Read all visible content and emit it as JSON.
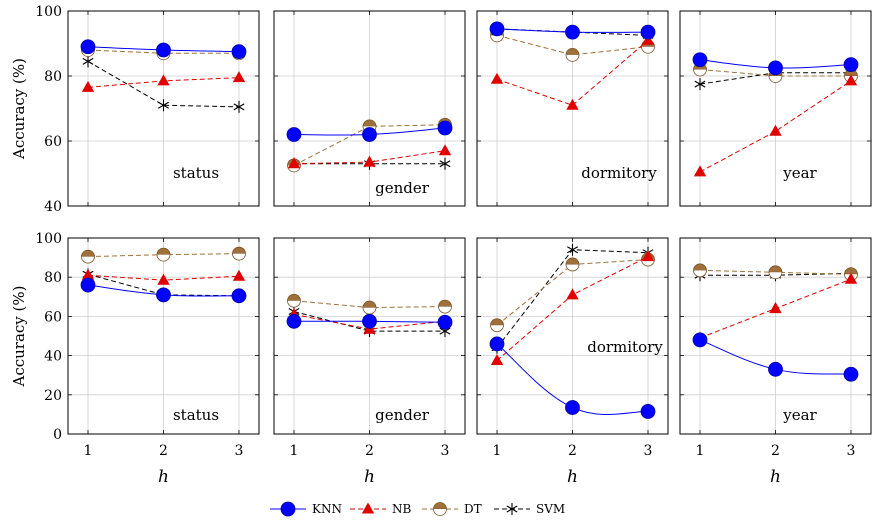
{
  "chart_data": {
    "type": "line",
    "xlabel": "h",
    "ylabel": "Accuracy (%)",
    "x": [
      1,
      2,
      3
    ],
    "xticks": [
      "1",
      "2",
      "3"
    ],
    "grid": true,
    "legend_position": "bottom-center",
    "legend": [
      {
        "name": "KNN",
        "color": "#0000ff",
        "marker": "circle",
        "dash": "solid"
      },
      {
        "name": "NB",
        "color": "#e00000",
        "marker": "triangle",
        "dash": "dashed"
      },
      {
        "name": "DT",
        "color": "#a0703a",
        "marker": "half-circle",
        "dash": "dashed"
      },
      {
        "name": "SVM",
        "color": "#000000",
        "marker": "star",
        "dash": "dashed"
      }
    ],
    "rows": [
      {
        "ylim": [
          40,
          100
        ],
        "yticks": [
          "40",
          "60",
          "80",
          "100"
        ],
        "panels": [
          {
            "label": "status",
            "series": {
              "KNN": [
                89,
                88,
                87.5
              ],
              "NB": [
                76.5,
                78.5,
                79.5
              ],
              "DT": [
                88,
                87,
                87
              ],
              "SVM": [
                84.5,
                71,
                70.5
              ]
            }
          },
          {
            "label": "gender",
            "series": {
              "KNN": [
                62,
                62,
                64
              ],
              "NB": [
                53,
                53.5,
                57
              ],
              "DT": [
                52.5,
                64.5,
                65
              ],
              "SVM": [
                53,
                53,
                53
              ]
            }
          },
          {
            "label": "dormitory",
            "series": {
              "KNN": [
                94.5,
                93.5,
                93.5
              ],
              "NB": [
                79,
                71,
                91
              ],
              "DT": [
                92.5,
                86.5,
                89
              ],
              "SVM": [
                94.5,
                93.5,
                92.5
              ]
            }
          },
          {
            "label": "year",
            "series": {
              "KNN": [
                85,
                82.5,
                83.5
              ],
              "NB": [
                50.5,
                63,
                78.5
              ],
              "DT": [
                82,
                80,
                80
              ],
              "SVM": [
                77.5,
                81,
                81
              ]
            }
          }
        ]
      },
      {
        "ylim": [
          0,
          100
        ],
        "yticks": [
          "0",
          "20",
          "40",
          "60",
          "80",
          "100"
        ],
        "panels": [
          {
            "label": "status",
            "series": {
              "KNN": [
                76,
                71,
                70.5
              ],
              "NB": [
                81,
                78.5,
                80.5
              ],
              "DT": [
                90.5,
                91.5,
                92
              ],
              "SVM": [
                81.5,
                71,
                70.5
              ]
            }
          },
          {
            "label": "gender",
            "series": {
              "KNN": [
                57.5,
                57.5,
                57
              ],
              "NB": [
                61,
                53.5,
                57.5
              ],
              "DT": [
                68,
                64.5,
                65
              ],
              "SVM": [
                62.5,
                52.5,
                52.5
              ]
            }
          },
          {
            "label": "dormitory",
            "series": {
              "KNN": [
                46,
                13.5,
                11.5
              ],
              "NB": [
                37.5,
                71,
                90.5
              ],
              "DT": [
                55.5,
                86.5,
                89
              ],
              "SVM": [
                44,
                94,
                92.5
              ]
            }
          },
          {
            "label": "year",
            "series": {
              "KNN": [
                48,
                33,
                30.5
              ],
              "NB": [
                49,
                64,
                79
              ],
              "DT": [
                83.5,
                82.5,
                81.5
              ],
              "SVM": [
                81,
                81,
                82
              ]
            }
          }
        ]
      }
    ]
  }
}
